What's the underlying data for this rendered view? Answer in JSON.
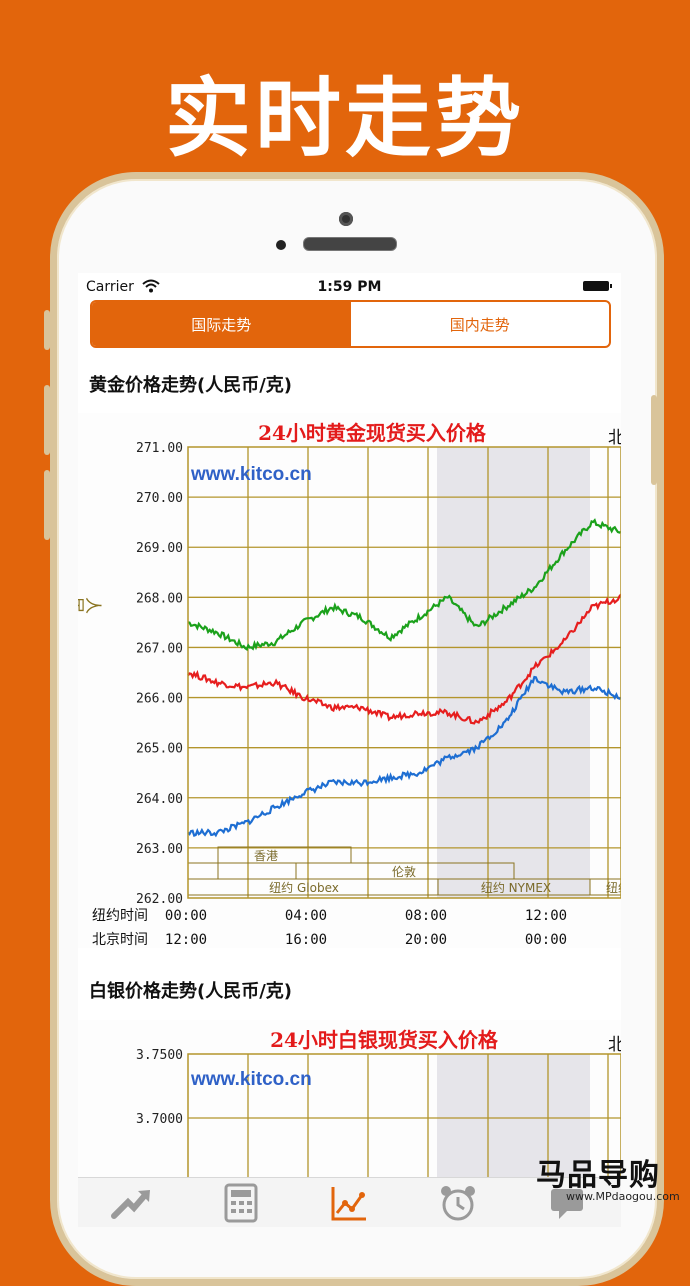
{
  "promo": {
    "headline": "实时走势"
  },
  "statusbar": {
    "carrier": "Carrier",
    "time": "1:59 PM"
  },
  "segments": [
    {
      "label": "国际走势",
      "active": true
    },
    {
      "label": "国内走势",
      "active": false
    }
  ],
  "sections": {
    "gold_title": "黄金价格走势(人民币/克)",
    "silver_title": "白银价格走势(人民币/克)"
  },
  "tabs": [
    {
      "icon": "trend-arrow-icon",
      "active": false
    },
    {
      "icon": "calculator-icon",
      "active": false
    },
    {
      "icon": "line-chart-icon",
      "active": true
    },
    {
      "icon": "alarm-clock-icon",
      "active": false
    },
    {
      "icon": "message-icon",
      "active": false
    }
  ],
  "watermark": {
    "title": "马品导购",
    "url": "www.MPdaogou.com"
  },
  "chart_data": [
    {
      "type": "line",
      "title": "24小时黄金现货买入价格",
      "corner_label": "北",
      "site_label": "www.kitco.cn",
      "ylabel": "人民币/克",
      "ylim": [
        262.0,
        271.0
      ],
      "y_ticks": [
        "271.00",
        "270.00",
        "269.00",
        "268.00",
        "267.00",
        "266.00",
        "265.00",
        "264.00",
        "263.00",
        "262.00"
      ],
      "x_rows": [
        {
          "label": "纽约时间",
          "ticks": [
            "00:00",
            "04:00",
            "08:00",
            "12:00"
          ]
        },
        {
          "label": "北京时间",
          "ticks": [
            "12:00",
            "16:00",
            "20:00",
            "00:00"
          ]
        }
      ],
      "market_labels": [
        "香港",
        "伦敦",
        "纽约 Globex",
        "纽约 NYMEX",
        "纽约"
      ],
      "x": [
        0,
        1,
        2,
        3,
        4,
        5,
        6,
        7,
        8,
        9,
        10,
        11,
        12,
        13,
        14,
        15
      ],
      "series": [
        {
          "color": "#1ba11b",
          "values": [
            267.5,
            267.3,
            267.0,
            267.1,
            267.5,
            267.8,
            267.6,
            267.2,
            267.6,
            268.0,
            267.4,
            267.8,
            268.2,
            268.9,
            269.5,
            269.3
          ]
        },
        {
          "color": "#e61e1e",
          "values": [
            266.5,
            266.3,
            266.2,
            266.3,
            266.0,
            265.8,
            265.8,
            265.6,
            265.7,
            265.7,
            265.5,
            265.9,
            266.6,
            267.1,
            267.8,
            268.0
          ]
        },
        {
          "color": "#1e6ed2",
          "values": [
            263.3,
            263.3,
            263.5,
            263.8,
            264.1,
            264.3,
            264.3,
            264.4,
            264.5,
            264.8,
            265.0,
            265.5,
            266.4,
            266.1,
            266.2,
            266.0
          ]
        }
      ]
    },
    {
      "type": "line",
      "title": "24小时白银现货买入价格",
      "corner_label": "北",
      "site_label": "www.kitco.cn",
      "y_ticks": [
        "3.7500",
        "3.7000"
      ],
      "series": []
    }
  ]
}
